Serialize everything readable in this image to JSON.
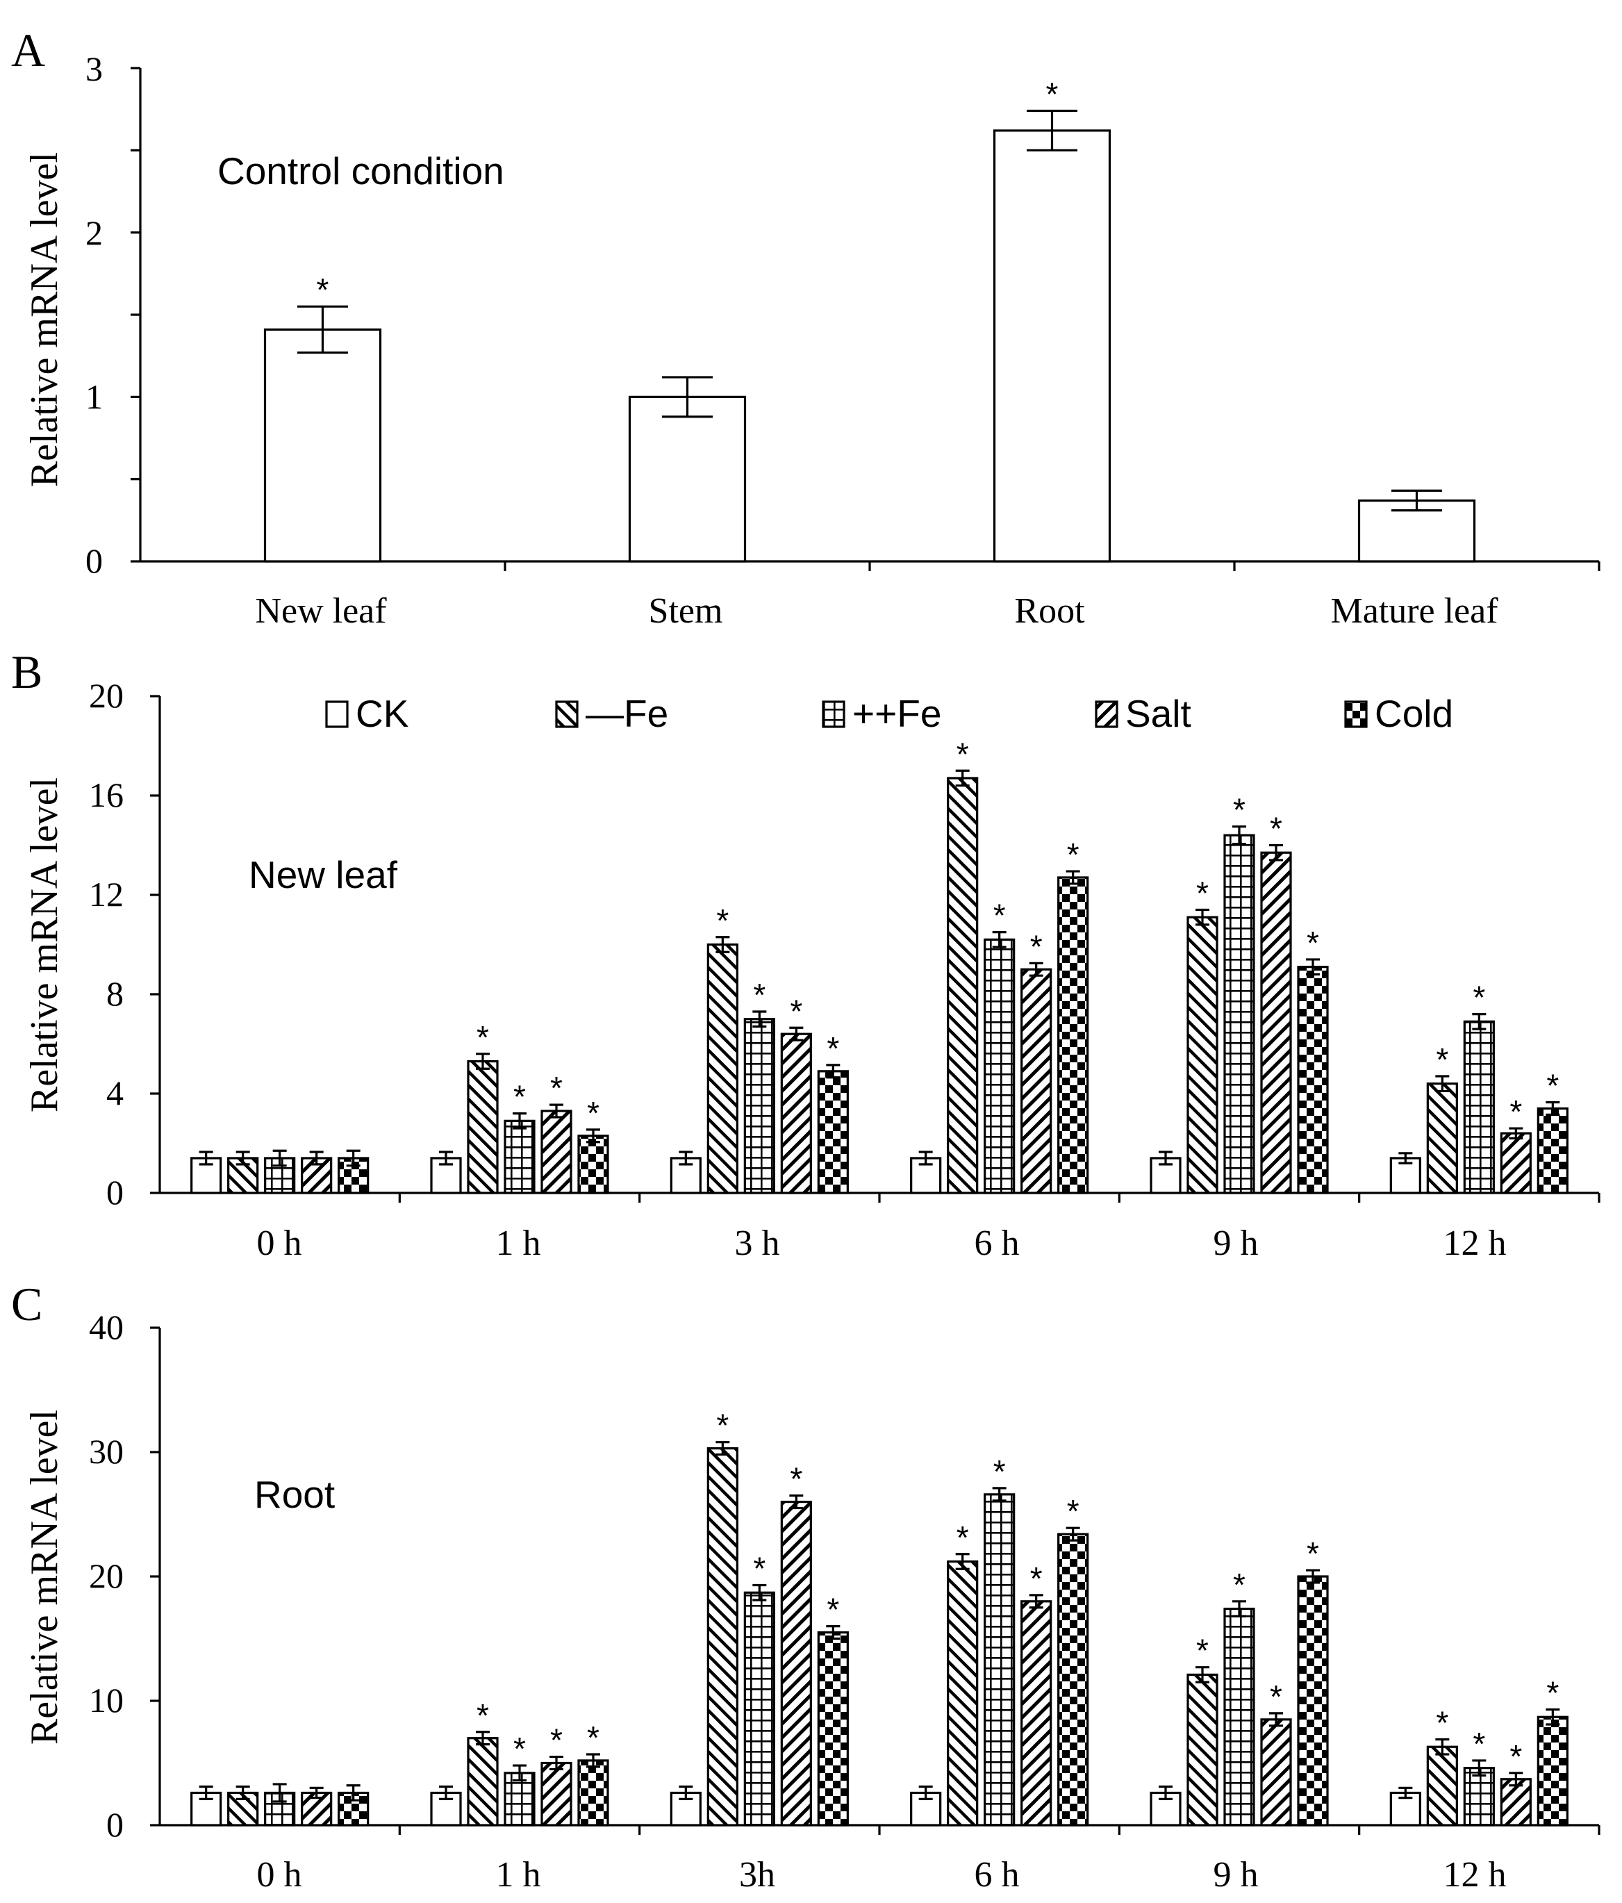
{
  "figure": {
    "panels": [
      {
        "letter": "A",
        "annotation": "Control condition"
      },
      {
        "letter": "B",
        "annotation": "New leaf"
      },
      {
        "letter": "C",
        "annotation": "Root"
      }
    ]
  },
  "colors": {
    "axis": "#000000",
    "fill": "#ffffff",
    "pattern": "#000000"
  },
  "chart_data": [
    {
      "type": "bar",
      "panel": "A",
      "title": "Control condition",
      "xlabel": "",
      "ylabel": "Relative mRNA level",
      "ylim": [
        0,
        3
      ],
      "yticks": [
        0,
        1,
        2,
        3
      ],
      "y_minor_step": 0.5,
      "categories": [
        "New leaf",
        "Stem",
        "Root",
        "Mature leaf"
      ],
      "series": [
        {
          "name": "Control",
          "pattern": "plain",
          "values": [
            1.41,
            1.0,
            2.62,
            0.37
          ],
          "errors": [
            0.14,
            0.12,
            0.12,
            0.06
          ],
          "significant": [
            true,
            false,
            true,
            false
          ]
        }
      ],
      "asterisk": "*"
    },
    {
      "type": "bar",
      "panel": "B",
      "title": "New leaf",
      "xlabel": "",
      "ylabel": "Relative mRNA level",
      "ylim": [
        0,
        20
      ],
      "yticks": [
        0,
        4,
        8,
        12,
        16,
        20
      ],
      "y_minor_step": null,
      "categories": [
        "0 h",
        "1 h",
        "3 h",
        "6 h",
        "9 h",
        "12 h"
      ],
      "legend_position": "top",
      "series": [
        {
          "name": "CK",
          "pattern": "plain",
          "values": [
            1.4,
            1.4,
            1.4,
            1.4,
            1.4,
            1.4
          ],
          "errors": [
            0.25,
            0.25,
            0.25,
            0.25,
            0.25,
            0.2
          ],
          "significant": [
            false,
            false,
            false,
            false,
            false,
            false
          ]
        },
        {
          "name": "—Fe",
          "pattern": "diag-back",
          "values": [
            1.4,
            5.3,
            10.0,
            16.7,
            11.1,
            4.4
          ],
          "errors": [
            0.25,
            0.3,
            0.3,
            0.3,
            0.3,
            0.3
          ],
          "significant": [
            false,
            true,
            true,
            true,
            true,
            true
          ]
        },
        {
          "name": "++Fe",
          "pattern": "grid",
          "values": [
            1.4,
            2.9,
            7.0,
            10.2,
            14.4,
            6.9
          ],
          "errors": [
            0.3,
            0.3,
            0.3,
            0.3,
            0.35,
            0.3
          ],
          "significant": [
            false,
            true,
            true,
            true,
            true,
            true
          ]
        },
        {
          "name": "Salt",
          "pattern": "diag-fwd",
          "values": [
            1.4,
            3.3,
            6.4,
            9.0,
            13.7,
            2.4
          ],
          "errors": [
            0.25,
            0.25,
            0.25,
            0.25,
            0.3,
            0.2
          ],
          "significant": [
            false,
            true,
            true,
            true,
            true,
            true
          ]
        },
        {
          "name": "Cold",
          "pattern": "checker",
          "values": [
            1.4,
            2.3,
            4.9,
            12.7,
            9.1,
            3.4
          ],
          "errors": [
            0.3,
            0.25,
            0.25,
            0.25,
            0.3,
            0.25
          ],
          "significant": [
            false,
            true,
            true,
            true,
            true,
            true
          ]
        }
      ],
      "asterisk": "*"
    },
    {
      "type": "bar",
      "panel": "C",
      "title": "Root",
      "xlabel": "",
      "ylabel": "Relative mRNA level",
      "ylim": [
        0,
        40
      ],
      "yticks": [
        0,
        10,
        20,
        30,
        40
      ],
      "y_minor_step": null,
      "categories": [
        "0 h",
        "1 h",
        "3h",
        "6 h",
        "9 h",
        "12 h"
      ],
      "series": [
        {
          "name": "CK",
          "pattern": "plain",
          "values": [
            2.6,
            2.6,
            2.6,
            2.6,
            2.6,
            2.6
          ],
          "errors": [
            0.5,
            0.5,
            0.5,
            0.5,
            0.5,
            0.4
          ],
          "significant": [
            false,
            false,
            false,
            false,
            false,
            false
          ]
        },
        {
          "name": "—Fe",
          "pattern": "diag-back",
          "values": [
            2.6,
            7.0,
            30.3,
            21.2,
            12.1,
            6.3
          ],
          "errors": [
            0.5,
            0.5,
            0.5,
            0.6,
            0.6,
            0.6
          ],
          "significant": [
            false,
            true,
            true,
            true,
            true,
            true
          ]
        },
        {
          "name": "++Fe",
          "pattern": "grid",
          "values": [
            2.6,
            4.2,
            18.7,
            26.6,
            17.4,
            4.6
          ],
          "errors": [
            0.7,
            0.6,
            0.6,
            0.5,
            0.6,
            0.6
          ],
          "significant": [
            false,
            true,
            true,
            true,
            true,
            true
          ]
        },
        {
          "name": "Salt",
          "pattern": "diag-fwd",
          "values": [
            2.6,
            5.0,
            26.0,
            18.0,
            8.5,
            3.7
          ],
          "errors": [
            0.4,
            0.5,
            0.5,
            0.5,
            0.5,
            0.5
          ],
          "significant": [
            false,
            true,
            true,
            true,
            true,
            true
          ]
        },
        {
          "name": "Cold",
          "pattern": "checker",
          "values": [
            2.6,
            5.2,
            15.5,
            23.4,
            20.0,
            8.7
          ],
          "errors": [
            0.6,
            0.5,
            0.5,
            0.5,
            0.5,
            0.6
          ],
          "significant": [
            false,
            true,
            true,
            true,
            true,
            true
          ]
        }
      ],
      "asterisk": "*"
    }
  ]
}
